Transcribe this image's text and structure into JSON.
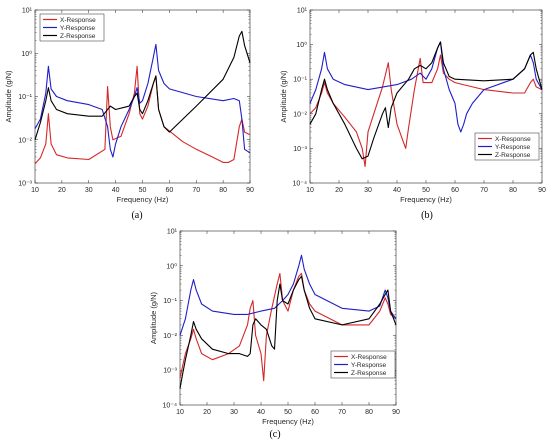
{
  "colors": {
    "x": "#d62728",
    "y": "#1f1fc8",
    "z": "#000000"
  },
  "chart_data": [
    {
      "type": "line",
      "panel": "(a)",
      "xlabel": "Frequency (Hz)",
      "ylabel": "Amplitude (g/N)",
      "xlim": [
        10,
        90
      ],
      "ylim_log10": [
        -3,
        1
      ],
      "y_scale": "log",
      "xticks": [
        "10",
        "20",
        "30",
        "40",
        "50",
        "60",
        "70",
        "80",
        "90"
      ],
      "yticks": [
        "10^-3",
        "10^-2",
        "10^-1",
        "10^0",
        "10^1"
      ],
      "legend": {
        "placement": "top-left",
        "entries": [
          "X-Response",
          "Y-Response",
          "Z-Response"
        ]
      },
      "series": [
        {
          "name": "X-Response",
          "color": "x",
          "x": [
            10,
            12,
            14,
            15,
            16,
            18,
            22,
            30,
            36,
            37,
            38,
            39,
            42,
            45,
            47,
            48,
            49,
            50,
            52,
            54,
            55,
            56,
            58,
            65,
            70,
            76,
            80,
            82,
            84,
            86,
            87,
            88,
            90
          ],
          "y": [
            0.0028,
            0.0038,
            0.008,
            0.04,
            0.008,
            0.0045,
            0.0038,
            0.0035,
            0.006,
            0.17,
            0.02,
            0.01,
            0.012,
            0.04,
            0.12,
            0.5,
            0.04,
            0.03,
            0.06,
            0.2,
            0.3,
            0.05,
            0.02,
            0.009,
            0.006,
            0.004,
            0.003,
            0.003,
            0.0035,
            0.02,
            0.03,
            0.015,
            0.013
          ]
        },
        {
          "name": "Y-Response",
          "color": "y",
          "x": [
            10,
            12,
            14,
            15,
            16,
            18,
            22,
            30,
            35,
            37,
            38,
            39,
            40,
            42,
            45,
            47,
            48,
            49,
            50,
            52,
            54,
            55,
            56,
            58,
            60,
            70,
            80,
            84,
            86,
            87,
            88,
            90
          ],
          "y": [
            0.018,
            0.03,
            0.12,
            0.5,
            0.15,
            0.1,
            0.08,
            0.065,
            0.05,
            0.02,
            0.006,
            0.004,
            0.008,
            0.02,
            0.05,
            0.1,
            0.16,
            0.07,
            0.08,
            0.2,
            0.8,
            1.6,
            0.4,
            0.2,
            0.15,
            0.1,
            0.08,
            0.09,
            0.08,
            0.03,
            0.006,
            0.005
          ]
        },
        {
          "name": "Z-Response",
          "color": "z",
          "x": [
            10,
            12,
            14,
            15,
            16,
            18,
            22,
            30,
            35,
            37,
            38,
            40,
            45,
            47,
            48,
            49,
            50,
            52,
            54,
            55,
            56,
            58,
            60,
            70,
            80,
            84,
            86,
            87,
            88,
            90
          ],
          "y": [
            0.01,
            0.025,
            0.08,
            0.16,
            0.08,
            0.05,
            0.04,
            0.035,
            0.035,
            0.05,
            0.06,
            0.05,
            0.06,
            0.1,
            0.12,
            0.05,
            0.04,
            0.08,
            0.2,
            0.3,
            0.05,
            0.02,
            0.015,
            0.06,
            0.25,
            0.8,
            2.5,
            3.2,
            1.5,
            0.6
          ]
        }
      ]
    },
    {
      "type": "line",
      "panel": "(b)",
      "xlabel": "Frequency (Hz)",
      "ylabel": "Amplitude (g/N)",
      "xlim": [
        10,
        90
      ],
      "ylim_log10": [
        -4,
        1
      ],
      "y_scale": "log",
      "xticks": [
        "10",
        "20",
        "30",
        "40",
        "50",
        "60",
        "70",
        "80",
        "90"
      ],
      "yticks": [
        "10^-4",
        "10^-3",
        "10^-2",
        "10^-1",
        "10^0",
        "10^1"
      ],
      "legend": {
        "placement": "bottom-right",
        "entries": [
          "X-Response",
          "Y-Response",
          "Z-Response"
        ]
      },
      "series": [
        {
          "name": "X-Response",
          "color": "x",
          "x": [
            10,
            12,
            14,
            15,
            16,
            18,
            22,
            26,
            28,
            29,
            30,
            32,
            35,
            37,
            38,
            40,
            43,
            44,
            46,
            48,
            49,
            50,
            52,
            54,
            55,
            56,
            58,
            60,
            70,
            80,
            84,
            86,
            87,
            88,
            90
          ],
          "y": [
            0.01,
            0.015,
            0.04,
            0.08,
            0.04,
            0.02,
            0.008,
            0.003,
            0.001,
            0.0003,
            0.003,
            0.01,
            0.06,
            0.3,
            0.05,
            0.005,
            0.001,
            0.004,
            0.05,
            0.4,
            0.08,
            0.08,
            0.08,
            0.2,
            0.5,
            0.15,
            0.1,
            0.08,
            0.05,
            0.04,
            0.04,
            0.08,
            0.1,
            0.06,
            0.05
          ]
        },
        {
          "name": "Y-Response",
          "color": "y",
          "x": [
            10,
            12,
            14,
            15,
            16,
            18,
            22,
            30,
            40,
            45,
            48,
            50,
            52,
            54,
            55,
            56,
            58,
            60,
            61,
            62,
            63,
            64,
            66,
            70,
            80,
            84,
            86,
            87,
            88,
            90
          ],
          "y": [
            0.02,
            0.05,
            0.2,
            0.6,
            0.2,
            0.1,
            0.07,
            0.05,
            0.07,
            0.1,
            0.15,
            0.1,
            0.2,
            0.8,
            1.2,
            0.2,
            0.05,
            0.02,
            0.005,
            0.003,
            0.005,
            0.01,
            0.02,
            0.05,
            0.1,
            0.2,
            0.5,
            0.3,
            0.1,
            0.05
          ]
        },
        {
          "name": "Z-Response",
          "color": "z",
          "x": [
            10,
            12,
            14,
            15,
            16,
            18,
            22,
            26,
            28,
            30,
            32,
            35,
            36,
            37,
            38,
            40,
            44,
            46,
            48,
            50,
            52,
            54,
            55,
            56,
            58,
            60,
            70,
            80,
            84,
            86,
            87,
            88,
            90
          ],
          "y": [
            0.005,
            0.01,
            0.05,
            0.1,
            0.05,
            0.02,
            0.005,
            0.001,
            0.0005,
            0.0006,
            0.002,
            0.01,
            0.015,
            0.004,
            0.015,
            0.04,
            0.1,
            0.2,
            0.25,
            0.2,
            0.3,
            0.8,
            1.2,
            0.3,
            0.12,
            0.1,
            0.09,
            0.1,
            0.2,
            0.5,
            0.6,
            0.2,
            0.05
          ]
        }
      ]
    },
    {
      "type": "line",
      "panel": "(c)",
      "xlabel": "Frequency (Hz)",
      "ylabel": "Amplitude (g/N)",
      "xlim": [
        10,
        90
      ],
      "ylim_log10": [
        -4,
        1
      ],
      "y_scale": "log",
      "xticks": [
        "10",
        "20",
        "30",
        "40",
        "50",
        "60",
        "70",
        "80",
        "90"
      ],
      "yticks": [
        "10^-4",
        "10^-3",
        "10^-2",
        "10^-1",
        "10^0",
        "10^1"
      ],
      "legend": {
        "placement": "bottom-right",
        "entries": [
          "X-Response",
          "Y-Response",
          "Z-Response"
        ]
      },
      "series": [
        {
          "name": "X-Response",
          "color": "x",
          "x": [
            10,
            12,
            14,
            15,
            16,
            18,
            22,
            28,
            32,
            35,
            36,
            37,
            38,
            40,
            41,
            42,
            44,
            46,
            47,
            48,
            50,
            52,
            54,
            55,
            56,
            58,
            60,
            70,
            80,
            84,
            86,
            87,
            88,
            90
          ],
          "y": [
            0.0006,
            0.003,
            0.008,
            0.015,
            0.008,
            0.003,
            0.002,
            0.003,
            0.005,
            0.02,
            0.06,
            0.1,
            0.01,
            0.003,
            0.0005,
            0.01,
            0.06,
            0.3,
            0.6,
            0.1,
            0.05,
            0.2,
            0.5,
            0.6,
            0.2,
            0.08,
            0.05,
            0.02,
            0.02,
            0.05,
            0.12,
            0.08,
            0.04,
            0.03
          ]
        },
        {
          "name": "Y-Response",
          "color": "y",
          "x": [
            10,
            12,
            14,
            15,
            16,
            18,
            22,
            30,
            35,
            40,
            45,
            48,
            50,
            52,
            54,
            55,
            56,
            58,
            60,
            70,
            80,
            84,
            86,
            87,
            88,
            90
          ],
          "y": [
            0.01,
            0.03,
            0.2,
            0.4,
            0.2,
            0.08,
            0.05,
            0.04,
            0.04,
            0.05,
            0.06,
            0.1,
            0.15,
            0.3,
            1.0,
            2.0,
            0.8,
            0.3,
            0.15,
            0.06,
            0.05,
            0.07,
            0.2,
            0.12,
            0.05,
            0.03
          ]
        },
        {
          "name": "Z-Response",
          "color": "z",
          "x": [
            10,
            11,
            12,
            14,
            15,
            16,
            18,
            22,
            28,
            32,
            35,
            36,
            37,
            38,
            40,
            42,
            44,
            45,
            46,
            47,
            48,
            50,
            52,
            54,
            55,
            56,
            58,
            60,
            70,
            80,
            84,
            86,
            87,
            88,
            90
          ],
          "y": [
            0.0003,
            0.0008,
            0.002,
            0.01,
            0.025,
            0.015,
            0.008,
            0.004,
            0.003,
            0.003,
            0.0025,
            0.003,
            0.02,
            0.03,
            0.02,
            0.015,
            0.005,
            0.004,
            0.1,
            0.3,
            0.1,
            0.08,
            0.2,
            0.4,
            0.5,
            0.2,
            0.06,
            0.03,
            0.02,
            0.03,
            0.08,
            0.15,
            0.2,
            0.05,
            0.02
          ]
        }
      ]
    }
  ]
}
